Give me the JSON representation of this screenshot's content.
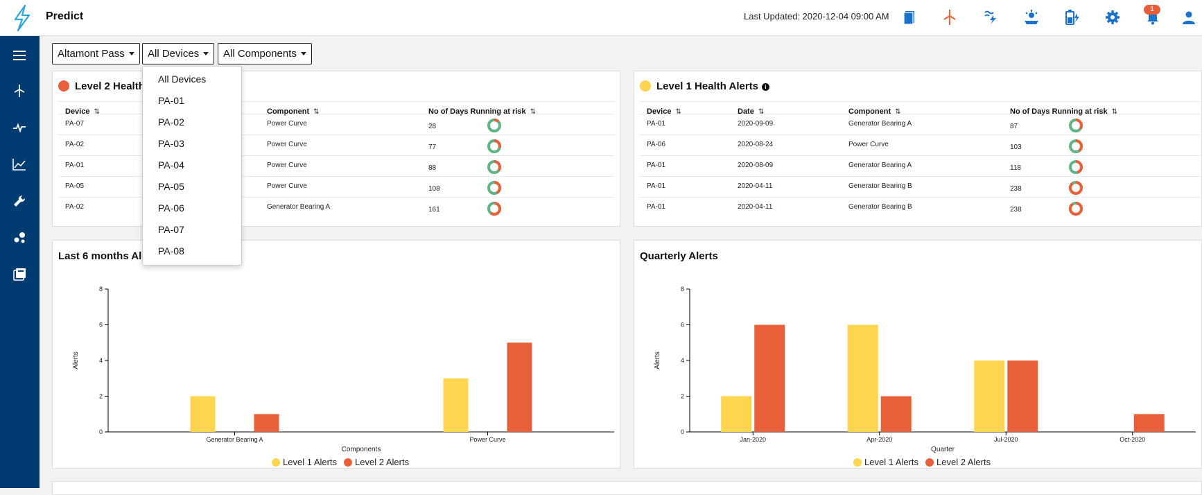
{
  "header": {
    "title": "Predict",
    "last_updated": "Last Updated: 2020-12-04 09:00 AM",
    "icons": [
      "book-icon",
      "wind-turbine-icon",
      "hydro-power-icon",
      "solar-icon",
      "battery-icon",
      "gear-icon",
      "bell-icon",
      "user-icon"
    ],
    "notification_count": "1"
  },
  "sidebar": {
    "items": [
      "menu-icon",
      "wind-turbine-icon",
      "pulse-icon",
      "line-chart-icon",
      "wrench-icon",
      "cluster-icon",
      "library-icon"
    ]
  },
  "filters": {
    "site": "Altamont Pass",
    "device": "All Devices",
    "component": "All Components"
  },
  "device_menu": {
    "options": [
      "All Devices",
      "PA-01",
      "PA-02",
      "PA-03",
      "PA-04",
      "PA-05",
      "PA-06",
      "PA-07",
      "PA-08"
    ]
  },
  "colors": {
    "level1": "#fdd54f",
    "level2": "#e8603a",
    "donut_green": "#5eb483",
    "sidebar": "#003c71",
    "accent": "#1a73c9"
  },
  "level2_table": {
    "title": "Level 2 Health",
    "headers": [
      "Device",
      "Component",
      "No of Days Running at risk"
    ],
    "rows": [
      {
        "device": "PA-07",
        "component": "Power Curve",
        "days": "28",
        "risk": 0.12
      },
      {
        "device": "PA-02",
        "component": "Power Curve",
        "days": "77",
        "risk": 0.3
      },
      {
        "device": "PA-01",
        "component": "Power Curve",
        "days": "88",
        "risk": 0.35
      },
      {
        "device": "PA-05",
        "component": "Power Curve",
        "days": "108",
        "risk": 0.42
      },
      {
        "device": "PA-02",
        "component": "Generator Bearing A",
        "days": "161",
        "risk": 0.6
      }
    ]
  },
  "level1_table": {
    "title": "Level 1 Health Alerts",
    "headers": [
      "Device",
      "Date",
      "Component",
      "No of Days Running at risk"
    ],
    "rows": [
      {
        "device": "PA-01",
        "date": "2020-09-09",
        "component": "Generator Bearing A",
        "days": "87",
        "risk": 0.35
      },
      {
        "device": "PA-06",
        "date": "2020-08-24",
        "component": "Power Curve",
        "days": "103",
        "risk": 0.4
      },
      {
        "device": "PA-01",
        "date": "2020-08-09",
        "component": "Generator Bearing A",
        "days": "118",
        "risk": 0.45
      },
      {
        "device": "PA-01",
        "date": "2020-04-11",
        "component": "Generator Bearing B",
        "days": "238",
        "risk": 0.9
      },
      {
        "device": "PA-01",
        "date": "2020-04-11",
        "component": "Generator Bearing B",
        "days": "238",
        "risk": 0.9
      }
    ]
  },
  "chart_data": [
    {
      "type": "bar",
      "title": "Last 6 months Ale",
      "categories": [
        "Generator Bearing A",
        "Power Curve"
      ],
      "series": [
        {
          "name": "Level 1 Alerts",
          "values": [
            2,
            3
          ]
        },
        {
          "name": "Level 2 Alerts",
          "values": [
            1,
            5
          ]
        }
      ],
      "xlabel": "Components",
      "ylabel": "Alerts",
      "ylim": [
        0,
        8
      ],
      "yticks": [
        "0",
        "2",
        "4",
        "6",
        "8"
      ],
      "legend": "bottom-center"
    },
    {
      "type": "bar",
      "title": "Quarterly Alerts",
      "categories": [
        "Jan-2020",
        "Apr-2020",
        "Jul-2020",
        "Oct-2020"
      ],
      "series": [
        {
          "name": "Level 1 Alerts",
          "values": [
            2,
            6,
            4,
            0
          ]
        },
        {
          "name": "Level 2 Alerts",
          "values": [
            6,
            2,
            4,
            1
          ]
        }
      ],
      "xlabel": "Quarter",
      "ylabel": "Alerts",
      "ylim": [
        0,
        8
      ],
      "yticks": [
        "0",
        "2",
        "4",
        "6",
        "8"
      ],
      "legend": "bottom-center"
    }
  ]
}
